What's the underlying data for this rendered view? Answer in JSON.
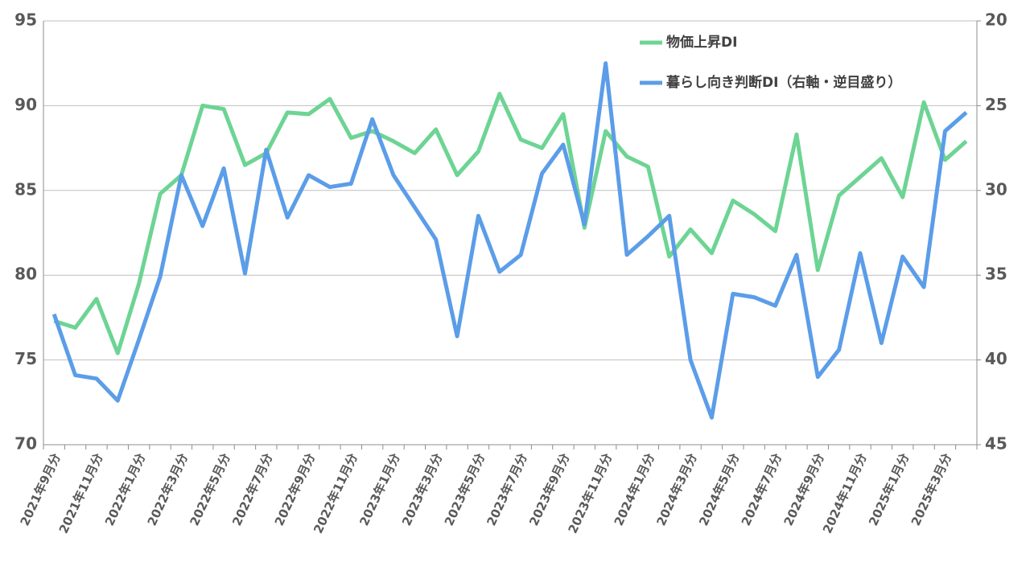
{
  "chart_data": {
    "type": "line",
    "categories": [
      "2021年9月分",
      null,
      "2021年11月分",
      null,
      "2022年1月分",
      null,
      "2022年3月分",
      null,
      "2022年5月分",
      null,
      "2022年7月分",
      null,
      "2022年9月分",
      null,
      "2022年11月分",
      null,
      "2023年1月分",
      null,
      "2023年3月分",
      null,
      "2023年5月分",
      null,
      "2023年7月分",
      null,
      "2023年9月分",
      null,
      "2023年11月分",
      null,
      "2024年1月分",
      null,
      "2024年3月分",
      null,
      "2024年5月分",
      null,
      "2024年7月分",
      null,
      "2024年9月分",
      null,
      "2024年11月分",
      null,
      "2025年1月分",
      null,
      "2025年3月分",
      null
    ],
    "series": [
      {
        "name": "物価上昇DI",
        "color": "#6dd494",
        "values": [
          77.3,
          76.9,
          78.6,
          75.4,
          79.5,
          84.8,
          85.9,
          90.0,
          89.8,
          86.5,
          87.2,
          89.6,
          89.5,
          90.4,
          88.1,
          88.5,
          87.9,
          87.2,
          88.6,
          85.9,
          87.3,
          90.7,
          88.0,
          87.5,
          89.5,
          82.8,
          88.5,
          87.0,
          86.4,
          81.1,
          82.7,
          81.3,
          84.4,
          83.6,
          82.6,
          88.3,
          80.3,
          84.7,
          85.8,
          86.9,
          84.6,
          90.2,
          86.8,
          87.9
        ]
      },
      {
        "name": "暮らし向き判断DI（右軸・逆目盛り）",
        "color": "#5b9de8",
        "axis": "y2",
        "values": [
          37.3,
          40.9,
          41.1,
          42.4,
          38.8,
          35.1,
          29.1,
          32.1,
          28.7,
          34.9,
          27.6,
          31.6,
          29.1,
          29.8,
          29.6,
          25.8,
          29.1,
          31.0,
          32.9,
          38.6,
          31.5,
          34.8,
          33.8,
          29.0,
          27.3,
          32.0,
          22.5,
          33.8,
          32.7,
          31.5,
          40.0,
          43.4,
          36.1,
          36.3,
          36.8,
          33.8,
          41.0,
          39.4,
          33.7,
          39.0,
          33.9,
          35.7,
          26.5,
          25.4
        ]
      }
    ],
    "ylim": [
      70,
      95
    ],
    "yticks": [
      70,
      75,
      80,
      85,
      90,
      95
    ],
    "y2lim": [
      45,
      20
    ],
    "y2ticks": [
      20,
      25,
      30,
      35,
      40,
      45
    ],
    "grid": true,
    "legend": "top"
  }
}
